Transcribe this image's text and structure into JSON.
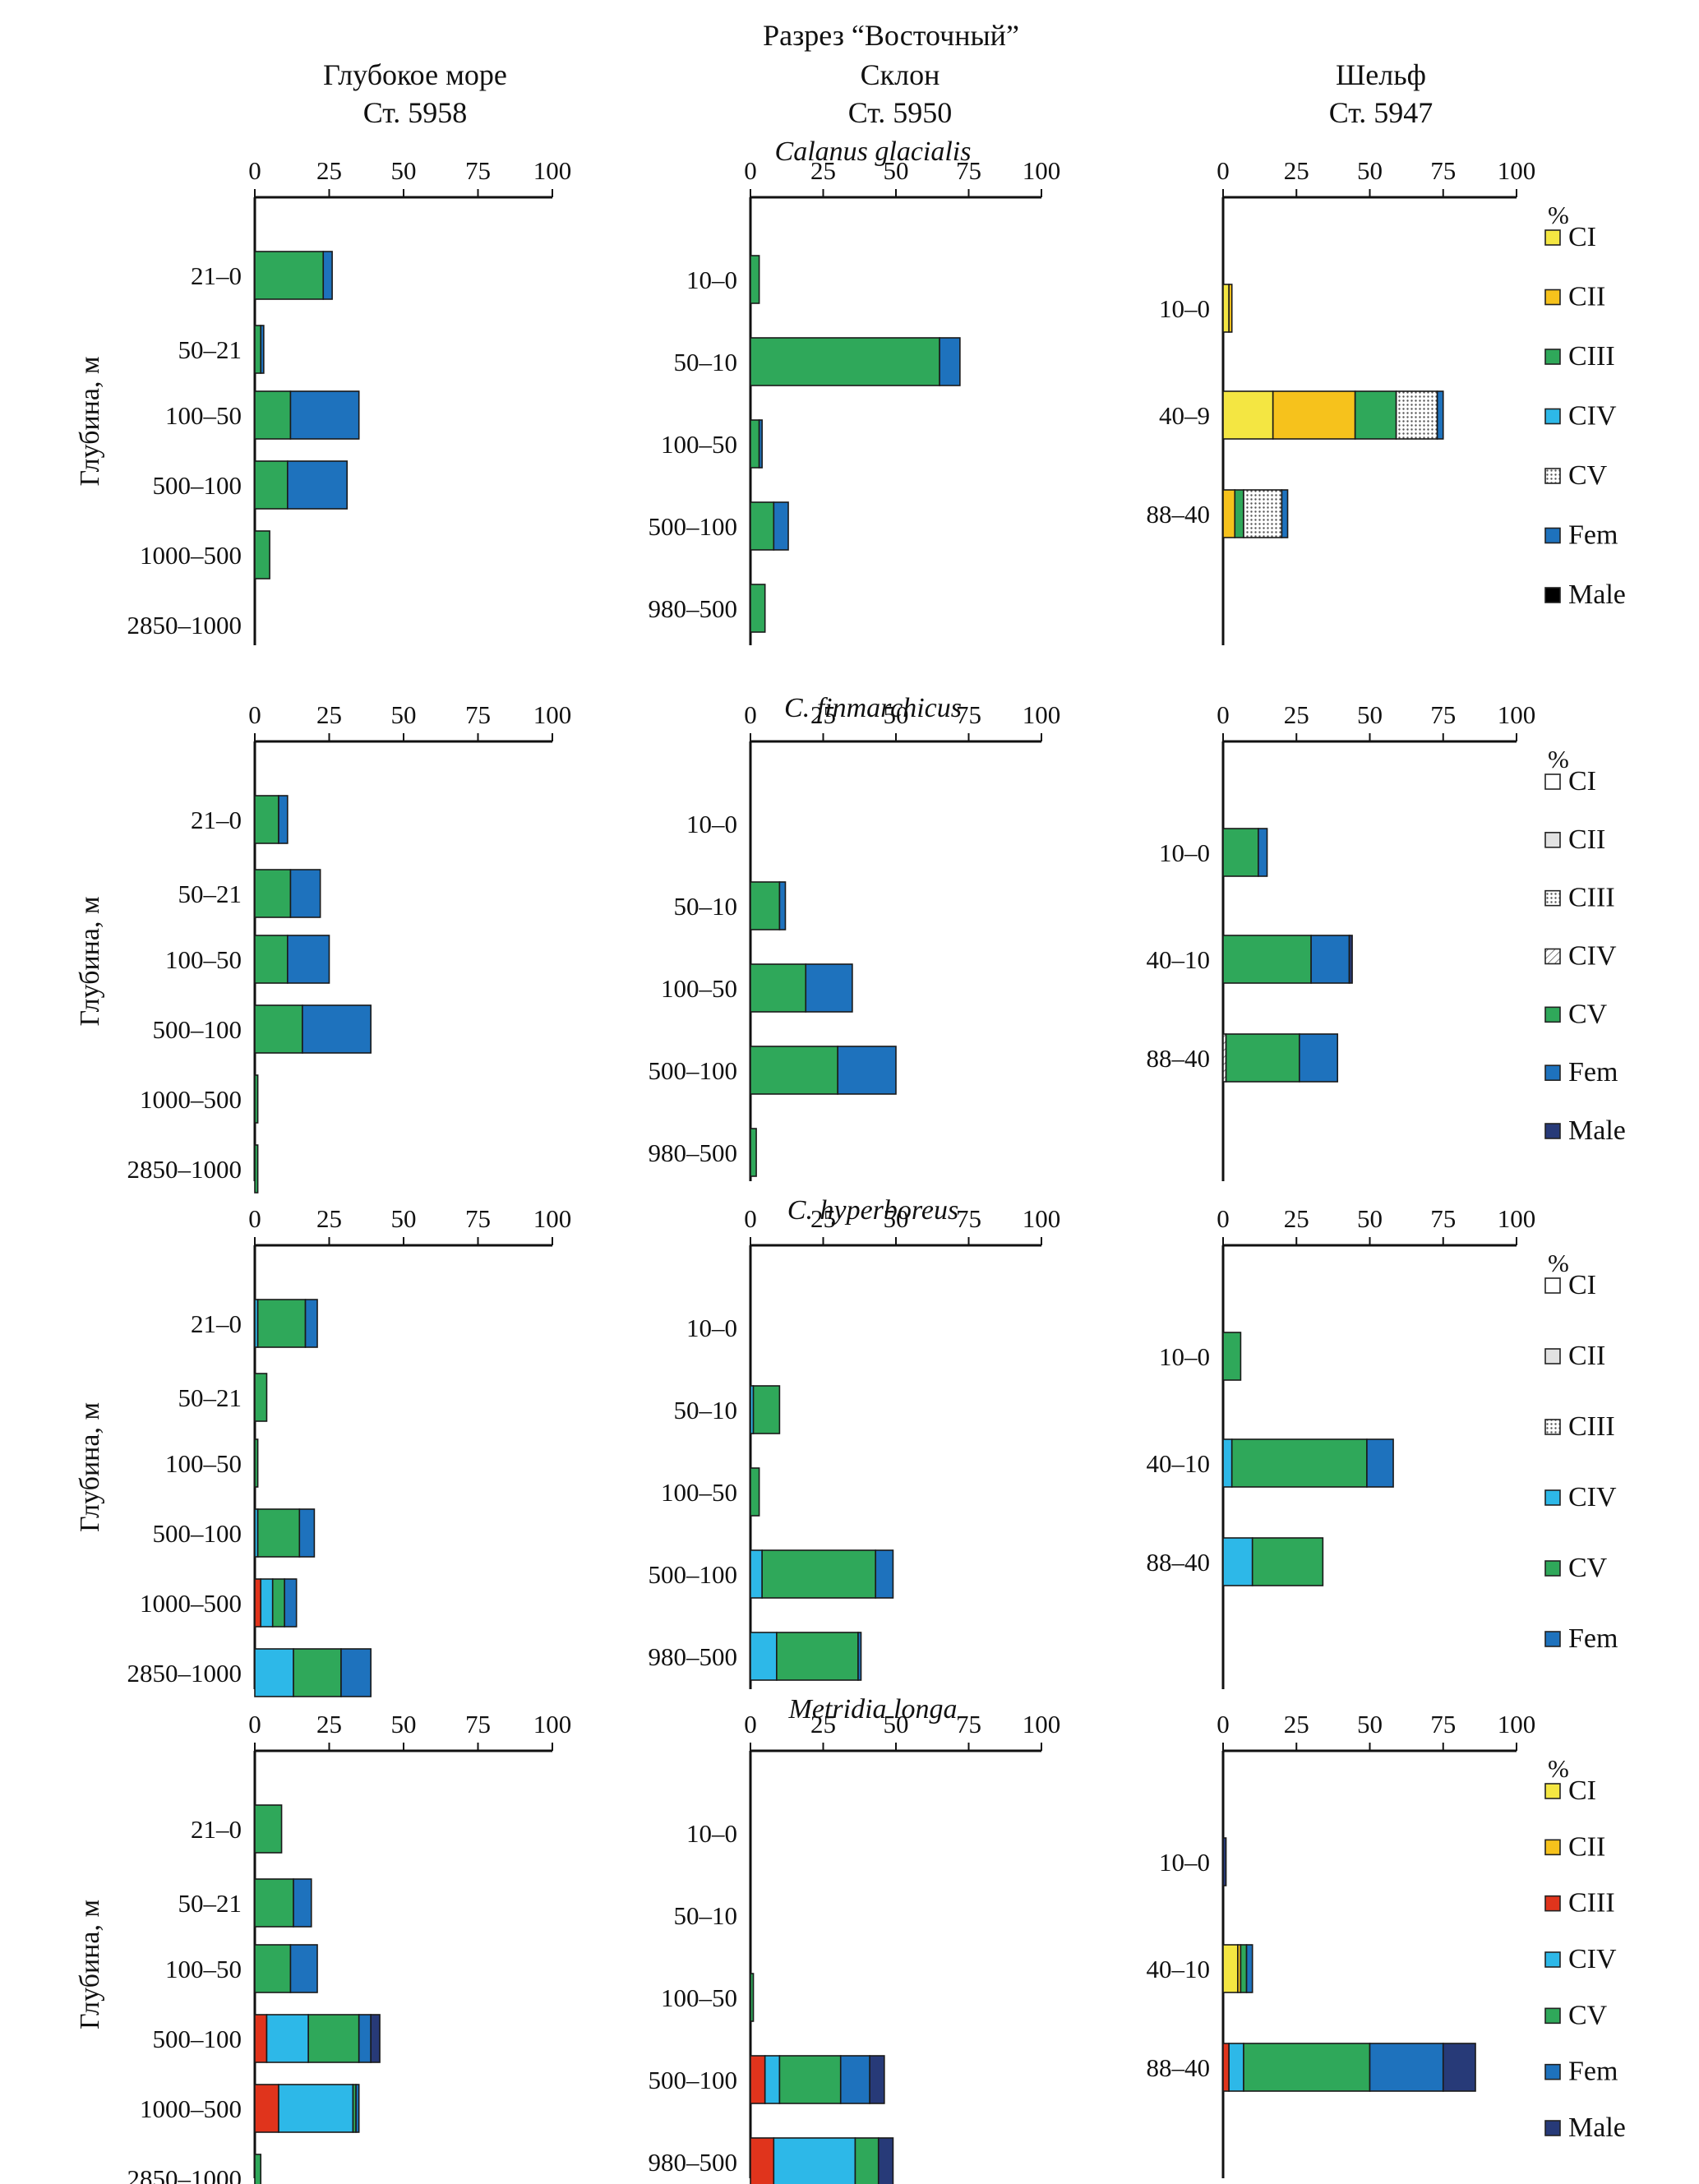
{
  "header": {
    "title": "Разрез “Восточный”",
    "col1_name": "Глубокое море",
    "col1_station": "Ст. 5958",
    "col2_name": "Склон",
    "col2_station": "Ст. 5950",
    "col3_name": "Шельф",
    "col3_station": "Ст. 5947"
  },
  "colors": {
    "CI": "#f4e642",
    "CII": "#f6c21c",
    "CIII": "#2fa85a",
    "CIV": "#2db8e8",
    "CV": "#2fa85a",
    "Fem": "#1e72bd",
    "Male": "#273a78",
    "CIII_red": "#e0341c",
    "white": "#ffffff",
    "grey": "#e2e2e2"
  },
  "chart_data": [
    {
      "type": "bar",
      "orientation": "horizontal",
      "stacked": true,
      "species": "Calanus glacialis",
      "panel": "deep",
      "xlim": [
        0,
        100
      ],
      "xticks": [
        "0",
        "25",
        "50",
        "75",
        "100"
      ],
      "ylabel": "Глубина, м",
      "legend": [],
      "categories": [
        "21–0",
        "50–21",
        "100–50",
        "500–100",
        "1000–500",
        "2850–1000"
      ],
      "series": [
        {
          "name": "CIII",
          "values": [
            23,
            2,
            12,
            11,
            5,
            0
          ]
        },
        {
          "name": "Fem",
          "values": [
            3,
            1,
            23,
            20,
            0,
            0
          ]
        }
      ]
    },
    {
      "type": "bar",
      "orientation": "horizontal",
      "stacked": true,
      "species": "Calanus glacialis",
      "panel": "slope",
      "xlim": [
        0,
        100
      ],
      "xticks": [
        "0",
        "25",
        "50",
        "75",
        "100"
      ],
      "ylabel": "",
      "legend": [],
      "categories": [
        "10–0",
        "50–10",
        "100–50",
        "500–100",
        "980–500"
      ],
      "series": [
        {
          "name": "CIII",
          "values": [
            3,
            65,
            3,
            8,
            5
          ]
        },
        {
          "name": "Fem",
          "values": [
            0,
            7,
            1,
            5,
            0
          ]
        }
      ]
    },
    {
      "type": "bar",
      "orientation": "horizontal",
      "stacked": true,
      "species": "Calanus glacialis",
      "panel": "shelf",
      "xlim": [
        0,
        100
      ],
      "xticks": [
        "0",
        "25",
        "50",
        "75",
        "100"
      ],
      "ylabel": "",
      "unit": "%",
      "legend": [
        "CI",
        "CII",
        "CIII",
        "CIV",
        "CV",
        "Fem",
        "Male"
      ],
      "legend_styles": [
        "yellow",
        "orange",
        "green",
        "cyan",
        "dots",
        "blue",
        "black"
      ],
      "categories": [
        "10–0",
        "40–9",
        "88–40"
      ],
      "series": [
        {
          "name": "CI",
          "values": [
            2,
            17,
            0
          ]
        },
        {
          "name": "CII",
          "values": [
            1,
            28,
            4
          ]
        },
        {
          "name": "CIII",
          "values": [
            0,
            14,
            3
          ]
        },
        {
          "name": "CIV",
          "values": [
            0,
            0,
            0
          ]
        },
        {
          "name": "CV",
          "values": [
            0,
            14,
            13
          ]
        },
        {
          "name": "Fem",
          "values": [
            0,
            2,
            2
          ]
        },
        {
          "name": "Male",
          "values": [
            0,
            0,
            0
          ]
        }
      ]
    },
    {
      "type": "bar",
      "orientation": "horizontal",
      "stacked": true,
      "species": "C. finmarchicus",
      "panel": "deep",
      "xlim": [
        0,
        100
      ],
      "xticks": [
        "0",
        "25",
        "50",
        "75",
        "100"
      ],
      "ylabel": "Глубина, м",
      "legend": [],
      "categories": [
        "21–0",
        "50–21",
        "100–50",
        "500–100",
        "1000–500",
        "2850–1000"
      ],
      "series": [
        {
          "name": "CV",
          "values": [
            8,
            12,
            11,
            16,
            1,
            1
          ]
        },
        {
          "name": "Fem",
          "values": [
            3,
            10,
            14,
            23,
            0,
            0
          ]
        }
      ]
    },
    {
      "type": "bar",
      "orientation": "horizontal",
      "stacked": true,
      "species": "C. finmarchicus",
      "panel": "slope",
      "xlim": [
        0,
        100
      ],
      "xticks": [
        "0",
        "25",
        "50",
        "75",
        "100"
      ],
      "ylabel": "",
      "legend": [],
      "categories": [
        "10–0",
        "50–10",
        "100–50",
        "500–100",
        "980–500"
      ],
      "series": [
        {
          "name": "CV",
          "values": [
            0,
            10,
            19,
            30,
            2
          ]
        },
        {
          "name": "Fem",
          "values": [
            0,
            2,
            16,
            20,
            0
          ]
        }
      ]
    },
    {
      "type": "bar",
      "orientation": "horizontal",
      "stacked": true,
      "species": "C. finmarchicus",
      "panel": "shelf",
      "xlim": [
        0,
        100
      ],
      "xticks": [
        "0",
        "25",
        "50",
        "75",
        "100"
      ],
      "ylabel": "",
      "unit": "%",
      "legend": [
        "CI",
        "CII",
        "CIII",
        "CIV",
        "CV",
        "Fem",
        "Male"
      ],
      "legend_styles": [
        "white",
        "grey",
        "dots",
        "hatch",
        "green",
        "blue",
        "navy"
      ],
      "categories": [
        "10–0",
        "40–10",
        "88–40"
      ],
      "series": [
        {
          "name": "CIV",
          "values": [
            0,
            0,
            1
          ]
        },
        {
          "name": "CV",
          "values": [
            12,
            30,
            25
          ]
        },
        {
          "name": "Fem",
          "values": [
            3,
            13,
            13
          ]
        },
        {
          "name": "Male",
          "values": [
            0,
            1,
            0
          ]
        }
      ]
    },
    {
      "type": "bar",
      "orientation": "horizontal",
      "stacked": true,
      "species": "C. hyperboreus",
      "panel": "deep",
      "xlim": [
        0,
        100
      ],
      "xticks": [
        "0",
        "25",
        "50",
        "75",
        "100"
      ],
      "ylabel": "Глубина, м",
      "legend": [],
      "categories": [
        "21–0",
        "50–21",
        "100–50",
        "500–100",
        "1000–500",
        "2850–1000"
      ],
      "series": [
        {
          "name": "CIII",
          "values": [
            0,
            0,
            0,
            0,
            2,
            0
          ]
        },
        {
          "name": "CIV",
          "values": [
            1,
            0,
            0,
            1,
            4,
            13
          ]
        },
        {
          "name": "CV",
          "values": [
            16,
            4,
            1,
            14,
            4,
            16
          ]
        },
        {
          "name": "Fem",
          "values": [
            4,
            0,
            0,
            5,
            4,
            10
          ]
        }
      ]
    },
    {
      "type": "bar",
      "orientation": "horizontal",
      "stacked": true,
      "species": "C. hyperboreus",
      "panel": "slope",
      "xlim": [
        0,
        100
      ],
      "xticks": [
        "0",
        "25",
        "50",
        "75",
        "100"
      ],
      "ylabel": "",
      "legend": [],
      "categories": [
        "10–0",
        "50–10",
        "100–50",
        "500–100",
        "980–500"
      ],
      "series": [
        {
          "name": "CIV",
          "values": [
            0,
            1,
            0,
            4,
            9
          ]
        },
        {
          "name": "CV",
          "values": [
            0,
            9,
            3,
            39,
            28
          ]
        },
        {
          "name": "Fem",
          "values": [
            0,
            0,
            0,
            6,
            1
          ]
        }
      ]
    },
    {
      "type": "bar",
      "orientation": "horizontal",
      "stacked": true,
      "species": "C. hyperboreus",
      "panel": "shelf",
      "xlim": [
        0,
        100
      ],
      "xticks": [
        "0",
        "25",
        "50",
        "75",
        "100"
      ],
      "ylabel": "",
      "unit": "%",
      "legend": [
        "CI",
        "CII",
        "CIII",
        "CIV",
        "CV",
        "Fem"
      ],
      "legend_styles": [
        "white",
        "grey",
        "dots",
        "cyan",
        "green",
        "blue"
      ],
      "categories": [
        "10–0",
        "40–10",
        "88–40"
      ],
      "series": [
        {
          "name": "CIV",
          "values": [
            0,
            3,
            10
          ]
        },
        {
          "name": "CV",
          "values": [
            6,
            46,
            24
          ]
        },
        {
          "name": "Fem",
          "values": [
            0,
            9,
            0
          ]
        }
      ]
    },
    {
      "type": "bar",
      "orientation": "horizontal",
      "stacked": true,
      "species": "Metridia longa",
      "panel": "deep",
      "xlim": [
        0,
        100
      ],
      "xticks": [
        "0",
        "25",
        "50",
        "75",
        "100"
      ],
      "ylabel": "Глубина, м",
      "legend": [],
      "categories": [
        "21–0",
        "50–21",
        "100–50",
        "500–100",
        "1000–500",
        "2850–1000"
      ],
      "series": [
        {
          "name": "CIII",
          "values": [
            0,
            0,
            0,
            4,
            8,
            0
          ]
        },
        {
          "name": "CIV",
          "values": [
            0,
            0,
            0,
            14,
            25,
            0
          ]
        },
        {
          "name": "CV",
          "values": [
            9,
            13,
            12,
            17,
            1,
            2
          ]
        },
        {
          "name": "Fem",
          "values": [
            0,
            6,
            9,
            4,
            1,
            0
          ]
        },
        {
          "name": "Male",
          "values": [
            0,
            0,
            0,
            3,
            0,
            0
          ]
        }
      ]
    },
    {
      "type": "bar",
      "orientation": "horizontal",
      "stacked": true,
      "species": "Metridia longa",
      "panel": "slope",
      "xlim": [
        0,
        100
      ],
      "xticks": [
        "0",
        "25",
        "50",
        "75",
        "100"
      ],
      "ylabel": "",
      "legend": [],
      "categories": [
        "10–0",
        "50–10",
        "100–50",
        "500–100",
        "980–500"
      ],
      "series": [
        {
          "name": "CIII",
          "values": [
            0,
            0,
            0,
            5,
            8
          ]
        },
        {
          "name": "CIV",
          "values": [
            0,
            0,
            0,
            5,
            28
          ]
        },
        {
          "name": "CV",
          "values": [
            0,
            0,
            1,
            21,
            8
          ]
        },
        {
          "name": "Fem",
          "values": [
            0,
            0,
            0,
            10,
            0
          ]
        },
        {
          "name": "Male",
          "values": [
            0,
            0,
            0,
            5,
            5
          ]
        }
      ]
    },
    {
      "type": "bar",
      "orientation": "horizontal",
      "stacked": true,
      "species": "Metridia longa",
      "panel": "shelf",
      "xlim": [
        0,
        100
      ],
      "xticks": [
        "0",
        "25",
        "50",
        "75",
        "100"
      ],
      "ylabel": "",
      "unit": "%",
      "legend": [
        "CI",
        "CII",
        "CIII",
        "CIV",
        "CV",
        "Fem",
        "Male"
      ],
      "legend_styles": [
        "yellow",
        "orange",
        "red",
        "cyan",
        "green",
        "blue",
        "navy"
      ],
      "categories": [
        "10–0",
        "40–10",
        "88–40"
      ],
      "series": [
        {
          "name": "CI",
          "values": [
            0,
            5,
            0
          ]
        },
        {
          "name": "CII",
          "values": [
            0,
            1,
            0
          ]
        },
        {
          "name": "CIII",
          "values": [
            0,
            0,
            2
          ]
        },
        {
          "name": "CIV",
          "values": [
            0,
            0,
            5
          ]
        },
        {
          "name": "CV",
          "values": [
            0,
            2,
            43
          ]
        },
        {
          "name": "Fem",
          "values": [
            0,
            2,
            25
          ]
        },
        {
          "name": "Male",
          "values": [
            1,
            0,
            11
          ]
        }
      ]
    }
  ]
}
